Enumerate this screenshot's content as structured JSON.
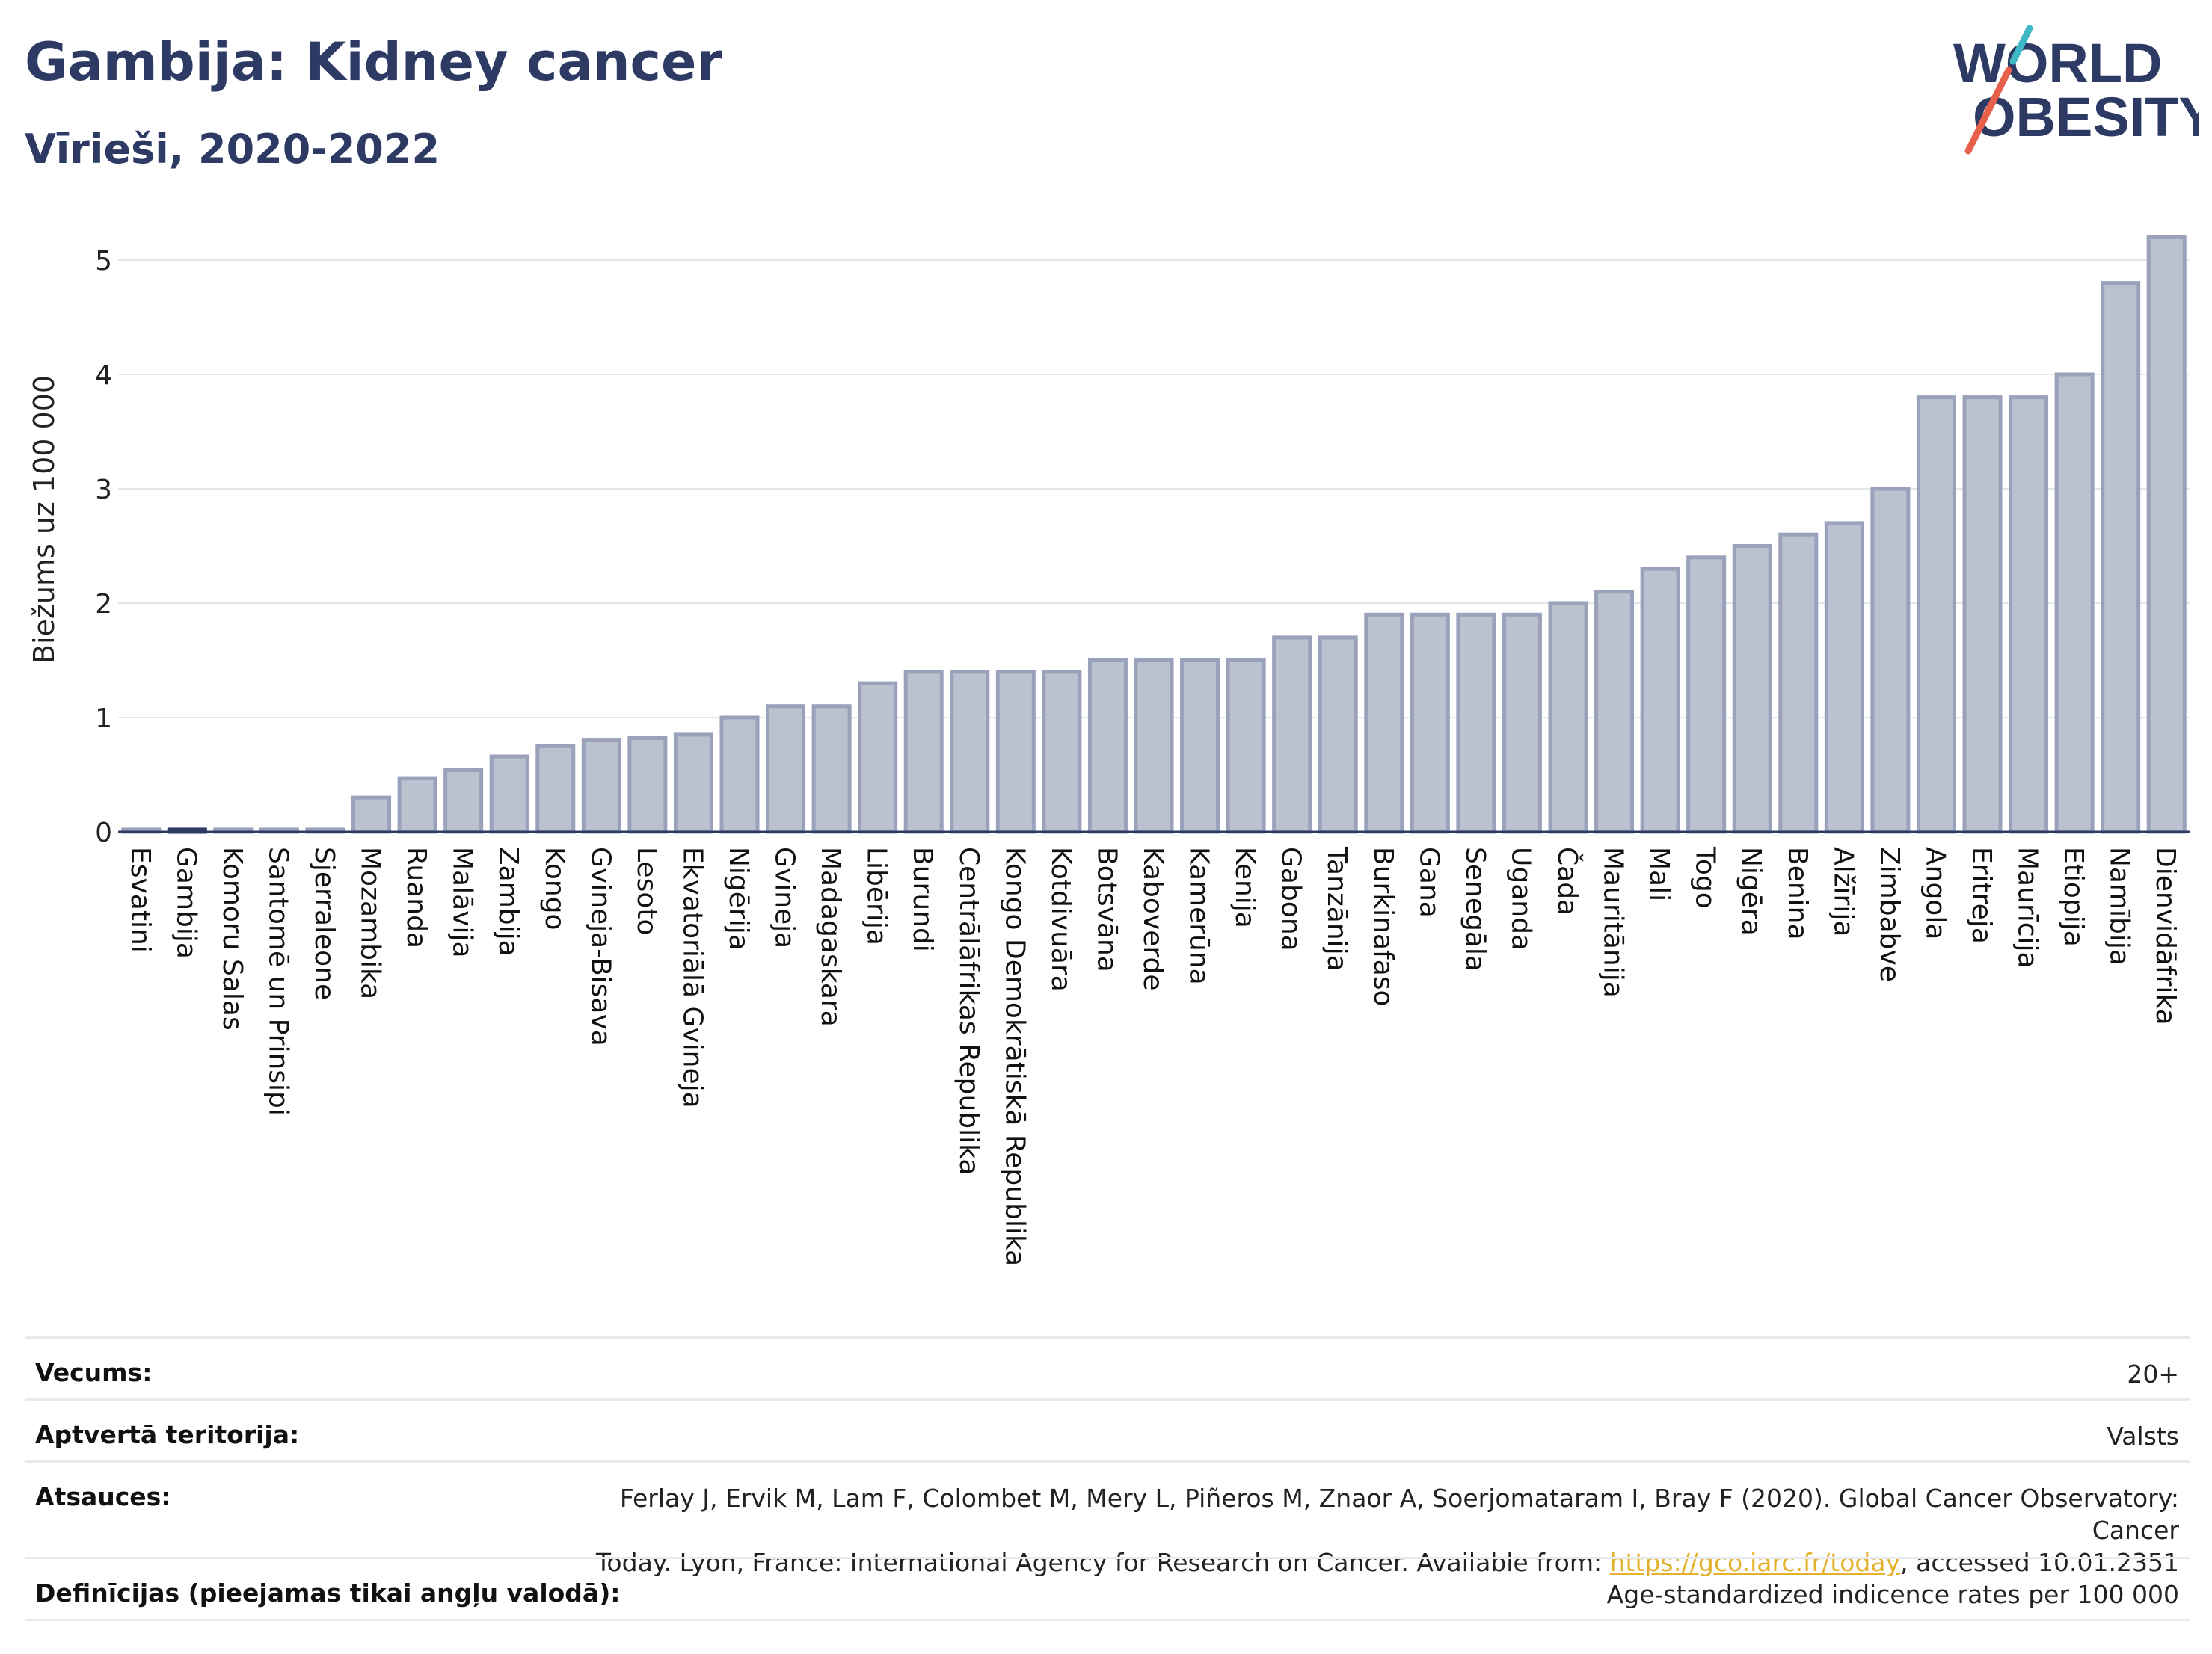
{
  "header": {
    "title": "Gambija: Kidney cancer",
    "subtitle": "Vīrieši, 2020-2022",
    "logo": {
      "line1": "WORLD",
      "line2": "OBESITY",
      "accent_colors": [
        "#e8604c",
        "#3fb8c5"
      ]
    }
  },
  "chart_data": {
    "type": "bar",
    "ylabel": "Biežums uz 100 000",
    "xlabel": "",
    "ylim": [
      0,
      5.3
    ],
    "yticks": [
      0,
      1,
      2,
      3,
      4,
      5
    ],
    "grid": true,
    "highlight": "Gambija",
    "colors": {
      "bar_fill": "#bcc1cf",
      "bar_stroke": "#9aa1ba",
      "highlight_fill": "#2c3a64",
      "grid": "#e3e7ea",
      "axis": "#2c3a64"
    },
    "categories": [
      "Esvatini",
      "Gambija",
      "Komoru Salas",
      "Santomē un Prinsipi",
      "Sjerraleone",
      "Mozambika",
      "Ruanda",
      "Malāvija",
      "Zambija",
      "Kongo",
      "Gvineja-Bisava",
      "Lesoto",
      "Ekvatoriālā Gvineja",
      "Nigērija",
      "Gvineja",
      "Madagaskara",
      "Libērija",
      "Burundi",
      "Centrālāfrikas Republika",
      "Kongo Demokrātiskā Republika",
      "Kotdivuāra",
      "Botsvāna",
      "Kaboverde",
      "Kamerūna",
      "Kenija",
      "Gabona",
      "Tanzānija",
      "Burkinafaso",
      "Gana",
      "Senegāla",
      "Uganda",
      "Čada",
      "Mauritānija",
      "Mali",
      "Togo",
      "Nigēra",
      "Benina",
      "Alžīrija",
      "Zimbabve",
      "Angola",
      "Eritreja",
      "Maurīcija",
      "Etiopija",
      "Namībija",
      "Dienvidāfrika"
    ],
    "values": [
      0.02,
      0.02,
      0.02,
      0.02,
      0.02,
      0.3,
      0.47,
      0.54,
      0.66,
      0.75,
      0.8,
      0.82,
      0.85,
      1.0,
      1.1,
      1.1,
      1.3,
      1.4,
      1.4,
      1.4,
      1.4,
      1.5,
      1.5,
      1.5,
      1.5,
      1.7,
      1.7,
      1.9,
      1.9,
      1.9,
      1.9,
      2.0,
      2.1,
      2.3,
      2.4,
      2.5,
      2.6,
      2.7,
      3.0,
      3.8,
      3.8,
      3.8,
      4.0,
      4.8,
      5.2
    ]
  },
  "meta": [
    {
      "key": "Vecums:",
      "value": "20+"
    },
    {
      "key": "Aptvertā teritorija:",
      "value": "Valsts"
    },
    {
      "key": "Atsauces:",
      "value_line1": "Ferlay J, Ervik M, Lam F, Colombet M, Mery L, Piñeros M, Znaor A, Soerjomataram I, Bray F (2020). Global Cancer Observatory: Cancer",
      "value_line2_pre": "Today. Lyon, France: International Agency for Research on Cancer. Available from: ",
      "link": "https://gco.iarc.fr/today",
      "value_line2_post": ", accessed 10.01.2351"
    },
    {
      "key": "Definīcijas (pieejamas tikai angļu valodā):",
      "value": "Age-standardized indicence rates per 100 000"
    }
  ]
}
